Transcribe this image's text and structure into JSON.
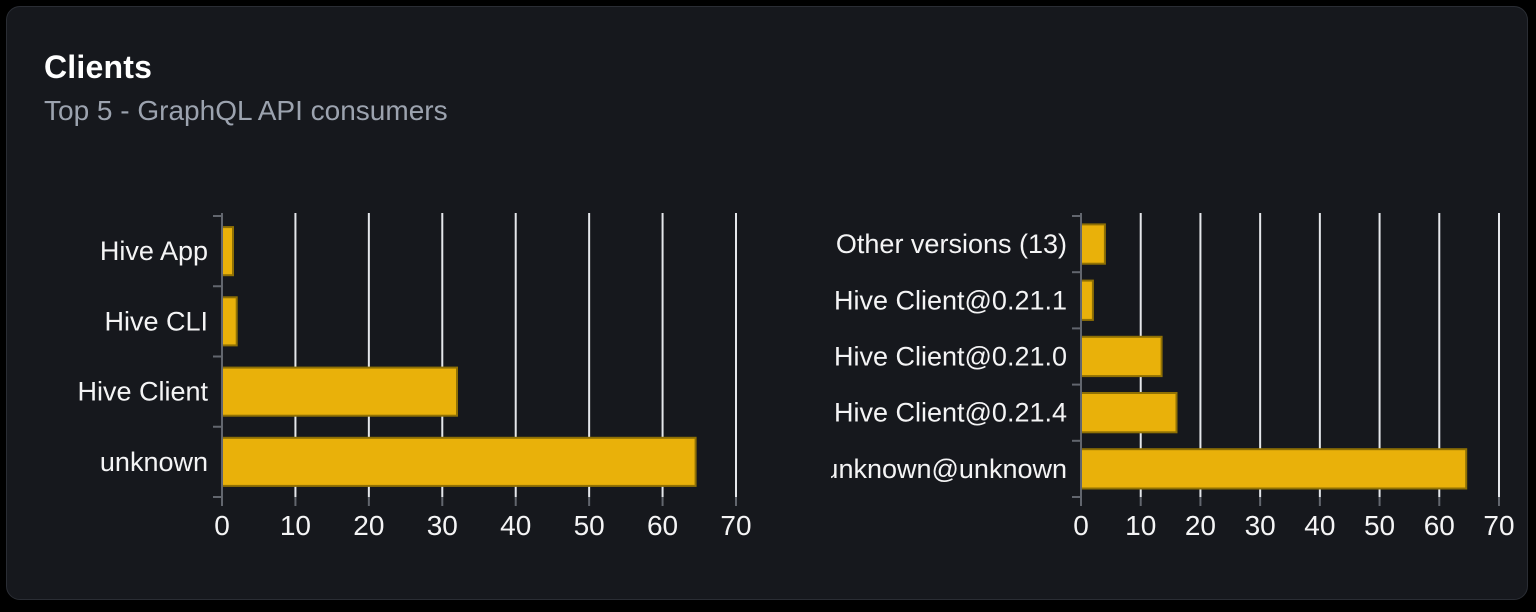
{
  "card": {
    "title": "Clients",
    "subtitle": "Top 5 - GraphQL API consumers"
  },
  "colors": {
    "page_bg": "#000000",
    "card_bg": "#16181d",
    "card_border": "#2a2d34",
    "title": "#ffffff",
    "subtitle": "#9ca3af",
    "bar_fill": "#e9b10a",
    "bar_stroke": "#8f7004",
    "grid": "#e5e7eb",
    "axis": "#62666e",
    "label": "#f4f4f5"
  },
  "chart_data": [
    {
      "type": "bar",
      "name": "clients-by-name",
      "orientation": "horizontal",
      "categories": [
        "Hive App",
        "Hive CLI",
        "Hive Client",
        "unknown"
      ],
      "values": [
        1.5,
        2,
        32,
        64.5
      ],
      "xlim": [
        0,
        70
      ],
      "xticks": [
        0,
        10,
        20,
        30,
        40,
        50,
        60,
        70
      ],
      "grid": true,
      "legend": false
    },
    {
      "type": "bar",
      "name": "clients-by-version",
      "orientation": "horizontal",
      "categories": [
        "Other versions (13)",
        "Hive Client@0.21.1",
        "Hive Client@0.21.0",
        "Hive Client@0.21.4",
        "unknown@unknown"
      ],
      "values": [
        4,
        2,
        13.5,
        16,
        64.5
      ],
      "xlim": [
        0,
        70
      ],
      "xticks": [
        0,
        10,
        20,
        30,
        40,
        50,
        60,
        70
      ],
      "grid": true,
      "legend": false
    }
  ]
}
